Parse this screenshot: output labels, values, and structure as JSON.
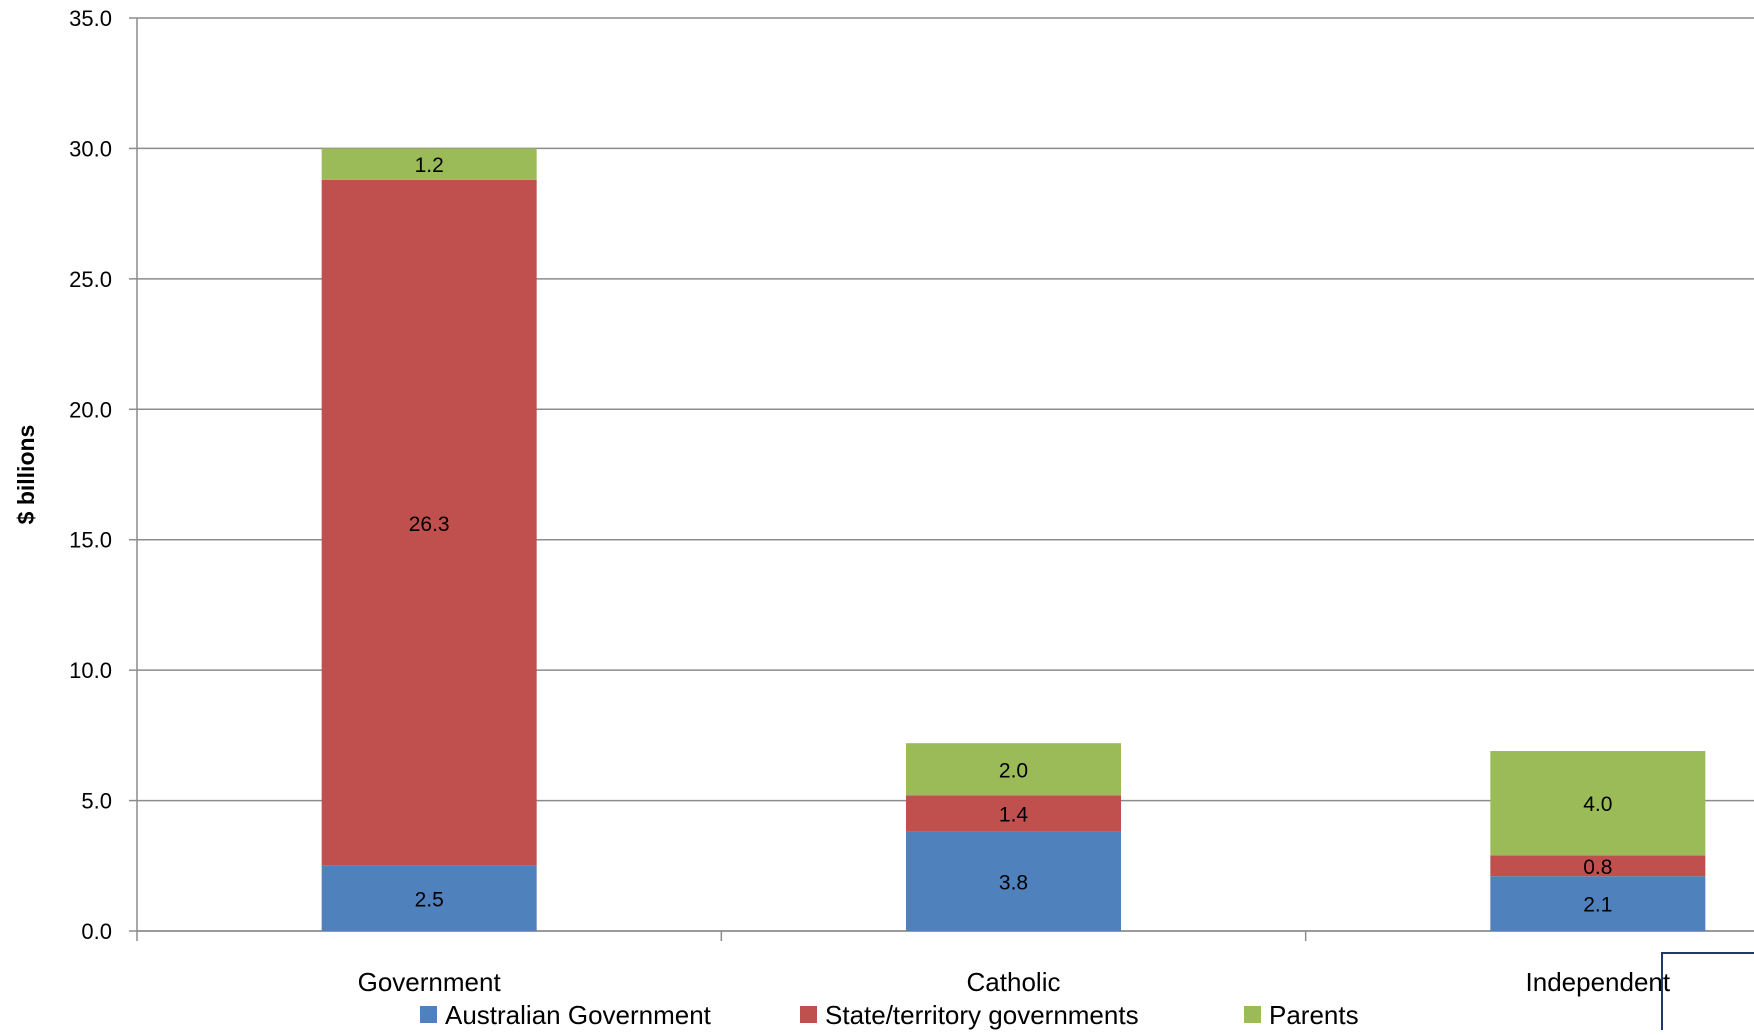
{
  "chart_data": {
    "type": "bar",
    "stacked": true,
    "categories": [
      "Government",
      "Catholic",
      "Independent"
    ],
    "series": [
      {
        "name": "Australian Government",
        "values": [
          2.5,
          3.8,
          2.1
        ],
        "labels": [
          "2.5",
          "3.8",
          "2.1"
        ],
        "color": "#4F81BD"
      },
      {
        "name": "State/territory governments",
        "values": [
          26.3,
          1.4,
          0.8
        ],
        "labels": [
          "26.3",
          "1.4",
          "0.8"
        ],
        "color": "#C0504D"
      },
      {
        "name": "Parents",
        "values": [
          1.2,
          2.0,
          4.0
        ],
        "labels": [
          "1.2",
          "2.0",
          "4.0"
        ],
        "color": "#9BBB59"
      }
    ],
    "title": "",
    "xlabel": "",
    "ylabel": "$ billions",
    "ylim": [
      0,
      35
    ],
    "yticks": [
      "0.0",
      "5.0",
      "10.0",
      "15.0",
      "20.0",
      "25.0",
      "30.0",
      "35.0"
    ],
    "grid": true,
    "legend_position": "bottom"
  }
}
